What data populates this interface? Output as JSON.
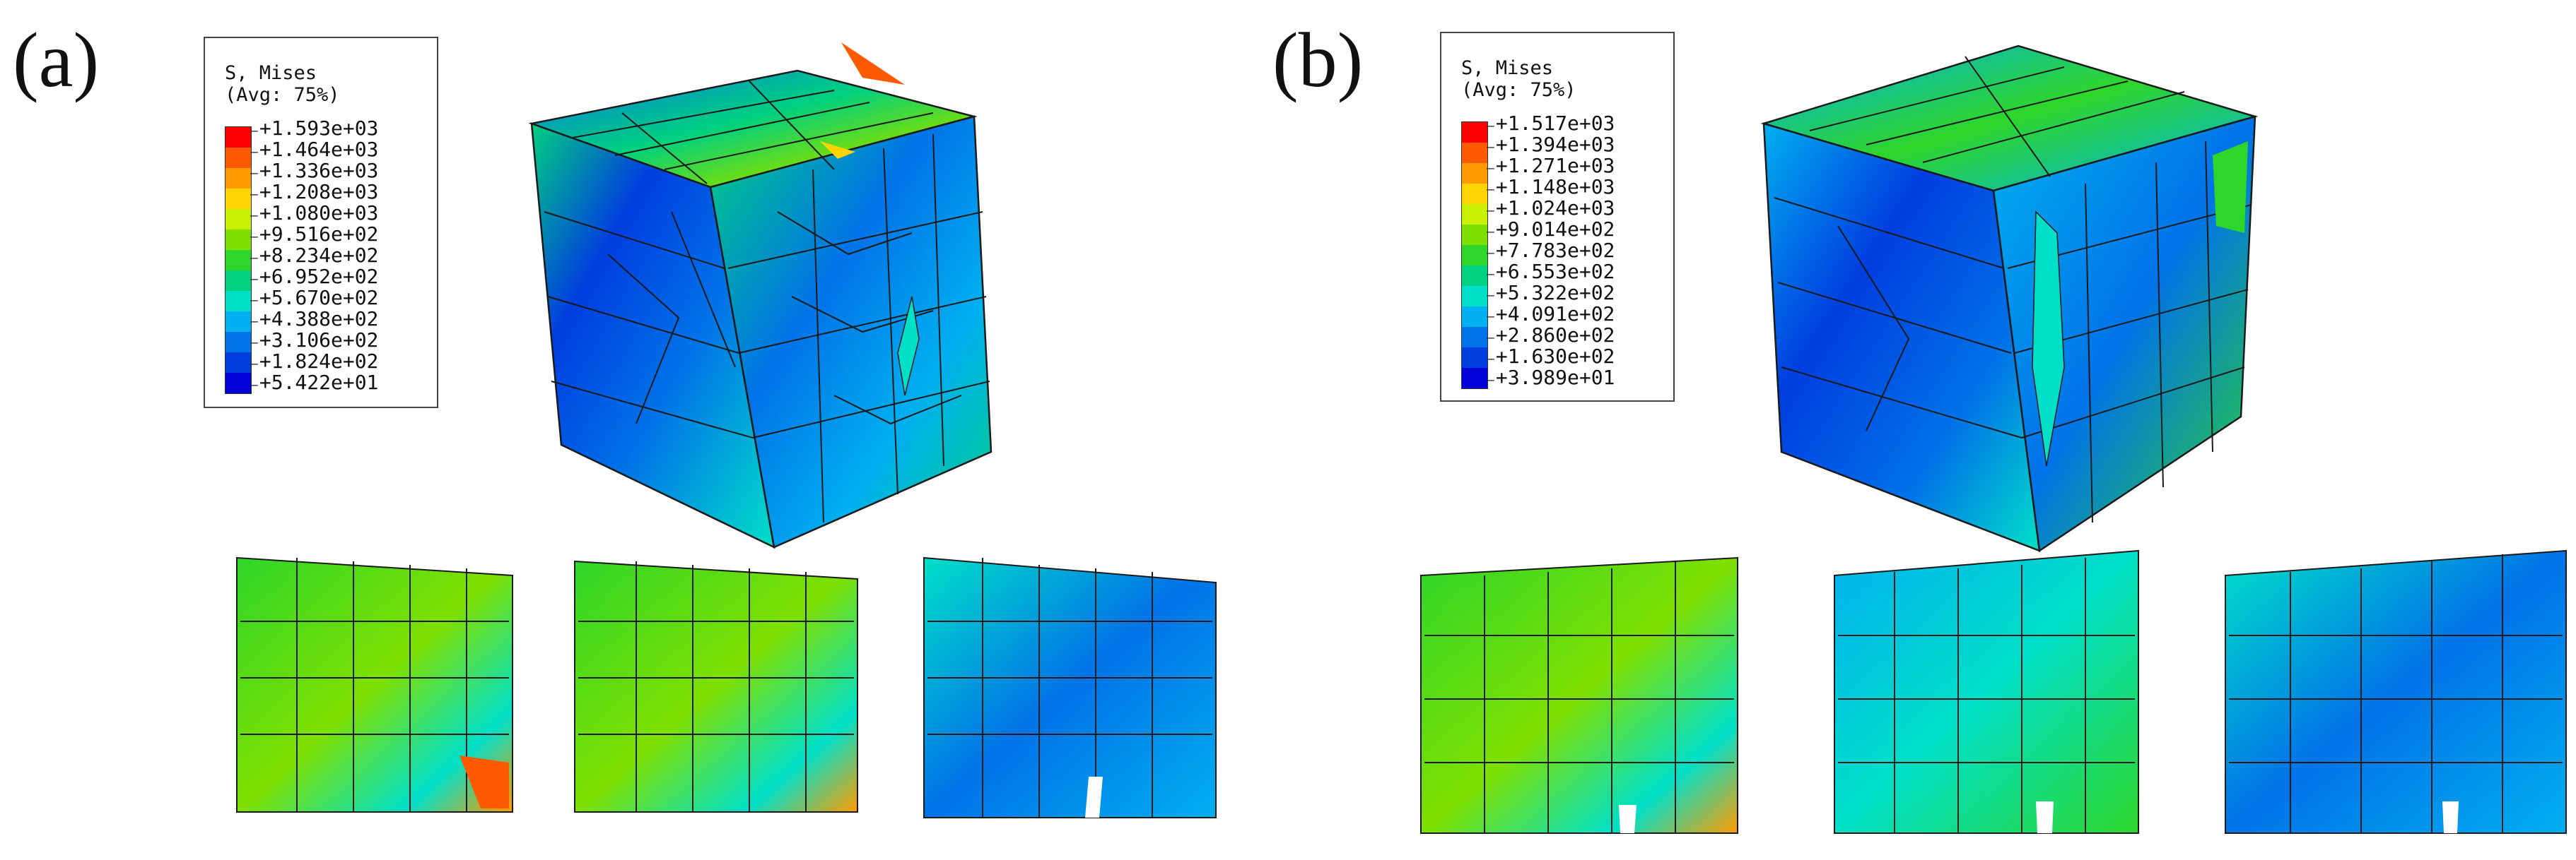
{
  "panels": [
    {
      "label": "(a)",
      "legend": {
        "title_line1": "S, Mises",
        "title_line2": "(Avg: 75%)",
        "values": [
          "+1.593e+03",
          "+1.464e+03",
          "+1.336e+03",
          "+1.208e+03",
          "+1.080e+03",
          "+9.516e+02",
          "+8.234e+02",
          "+6.952e+02",
          "+5.670e+02",
          "+4.388e+02",
          "+3.106e+02",
          "+1.824e+02",
          "+5.422e+01"
        ]
      }
    },
    {
      "label": "(b)",
      "legend": {
        "title_line1": "S, Mises",
        "title_line2": "(Avg: 75%)",
        "values": [
          "+1.517e+03",
          "+1.394e+03",
          "+1.271e+03",
          "+1.148e+03",
          "+1.024e+03",
          "+9.014e+02",
          "+7.783e+02",
          "+6.553e+02",
          "+5.322e+02",
          "+4.091e+02",
          "+2.860e+02",
          "+1.630e+02",
          "+3.989e+01"
        ]
      }
    }
  ],
  "colormap": [
    "#ff0000",
    "#ff5a00",
    "#ff9b00",
    "#ffd400",
    "#c8f000",
    "#7fe000",
    "#2ed62a",
    "#00d080",
    "#00e0c8",
    "#00b0f0",
    "#0073e8",
    "#003ee0",
    "#0000d8"
  ]
}
